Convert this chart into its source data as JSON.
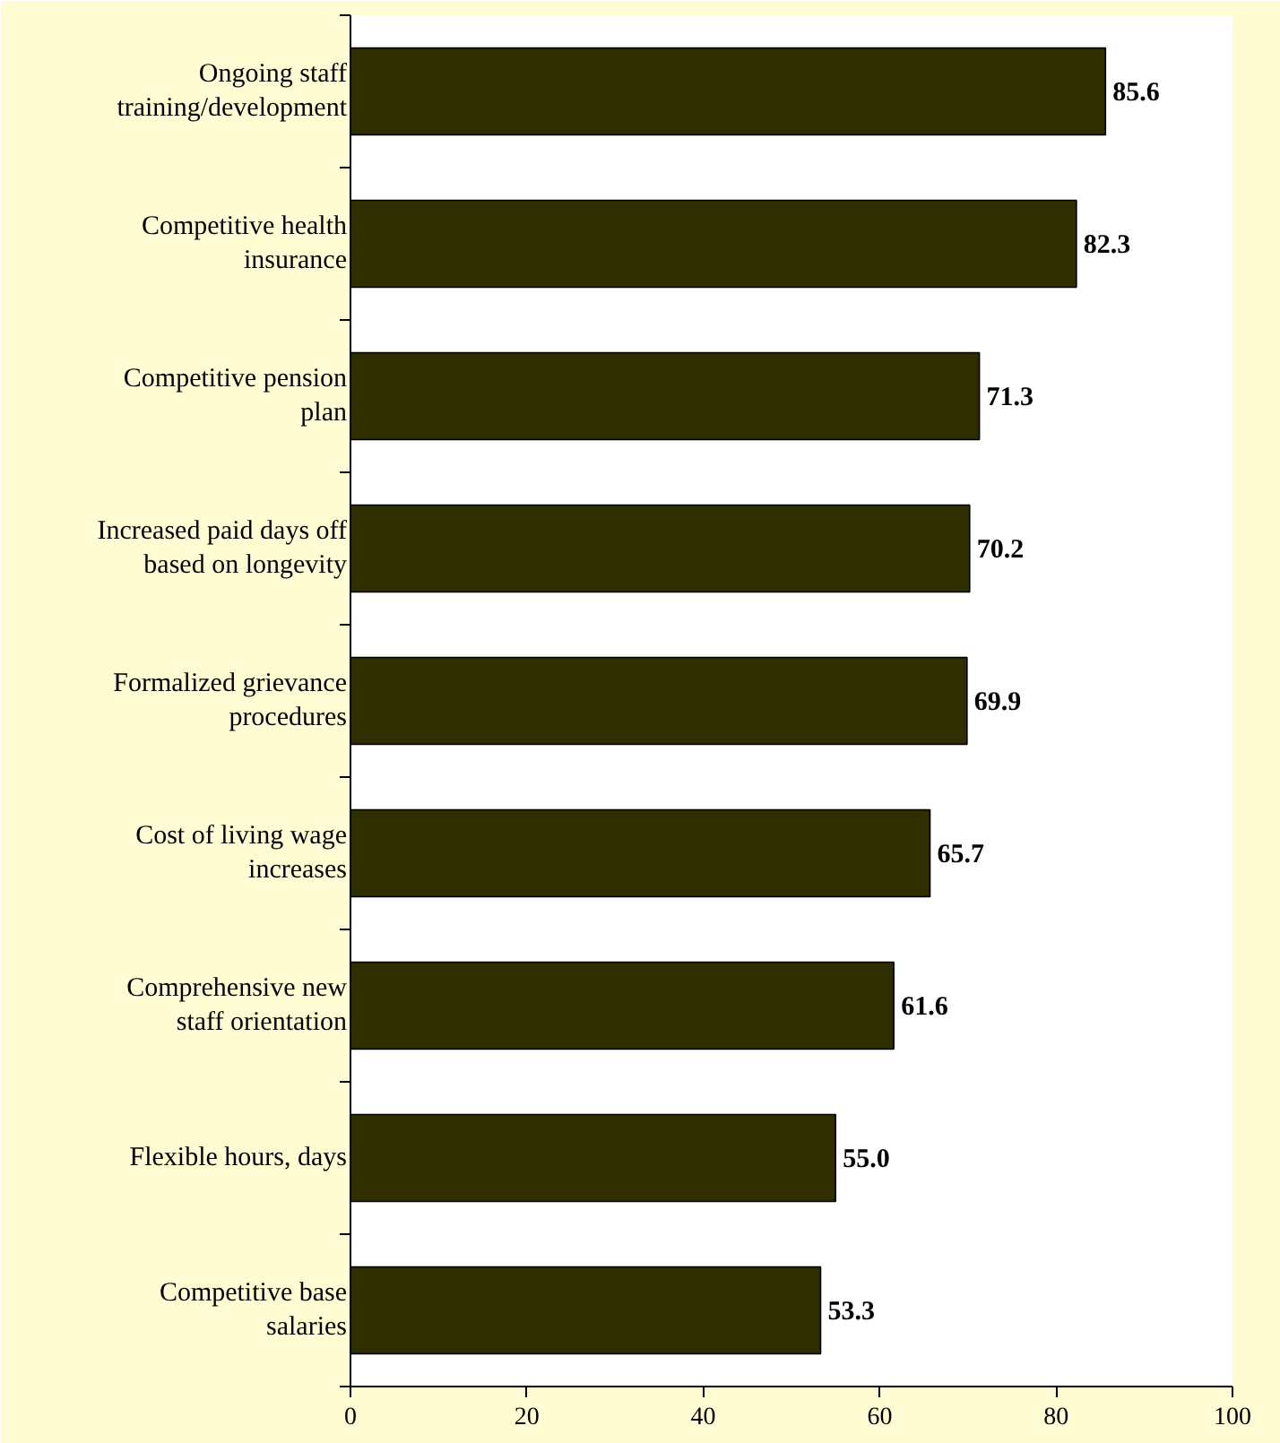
{
  "chart_data": {
    "type": "bar",
    "orientation": "horizontal",
    "categories": [
      "Ongoing staff\ntraining/development",
      "Competitive health\ninsurance",
      "Competitive pension\nplan",
      "Increased paid days off\nbased on longevity",
      "Formalized grievance\nprocedures",
      "Cost of living wage\nincreases",
      "Comprehensive new\nstaff orientation",
      "Flexible hours, days",
      "Competitive base\nsalaries"
    ],
    "values": [
      85.6,
      82.3,
      71.3,
      70.2,
      69.9,
      65.7,
      61.6,
      55.0,
      53.3
    ],
    "value_labels": [
      "85.6",
      "82.3",
      "71.3",
      "70.2",
      "69.9",
      "65.7",
      "61.6",
      "55.0",
      "53.3"
    ],
    "color": "#2e2e00",
    "xlim": [
      0,
      100
    ],
    "xticks": [
      0,
      20,
      40,
      60,
      80,
      100
    ],
    "grid": false
  }
}
